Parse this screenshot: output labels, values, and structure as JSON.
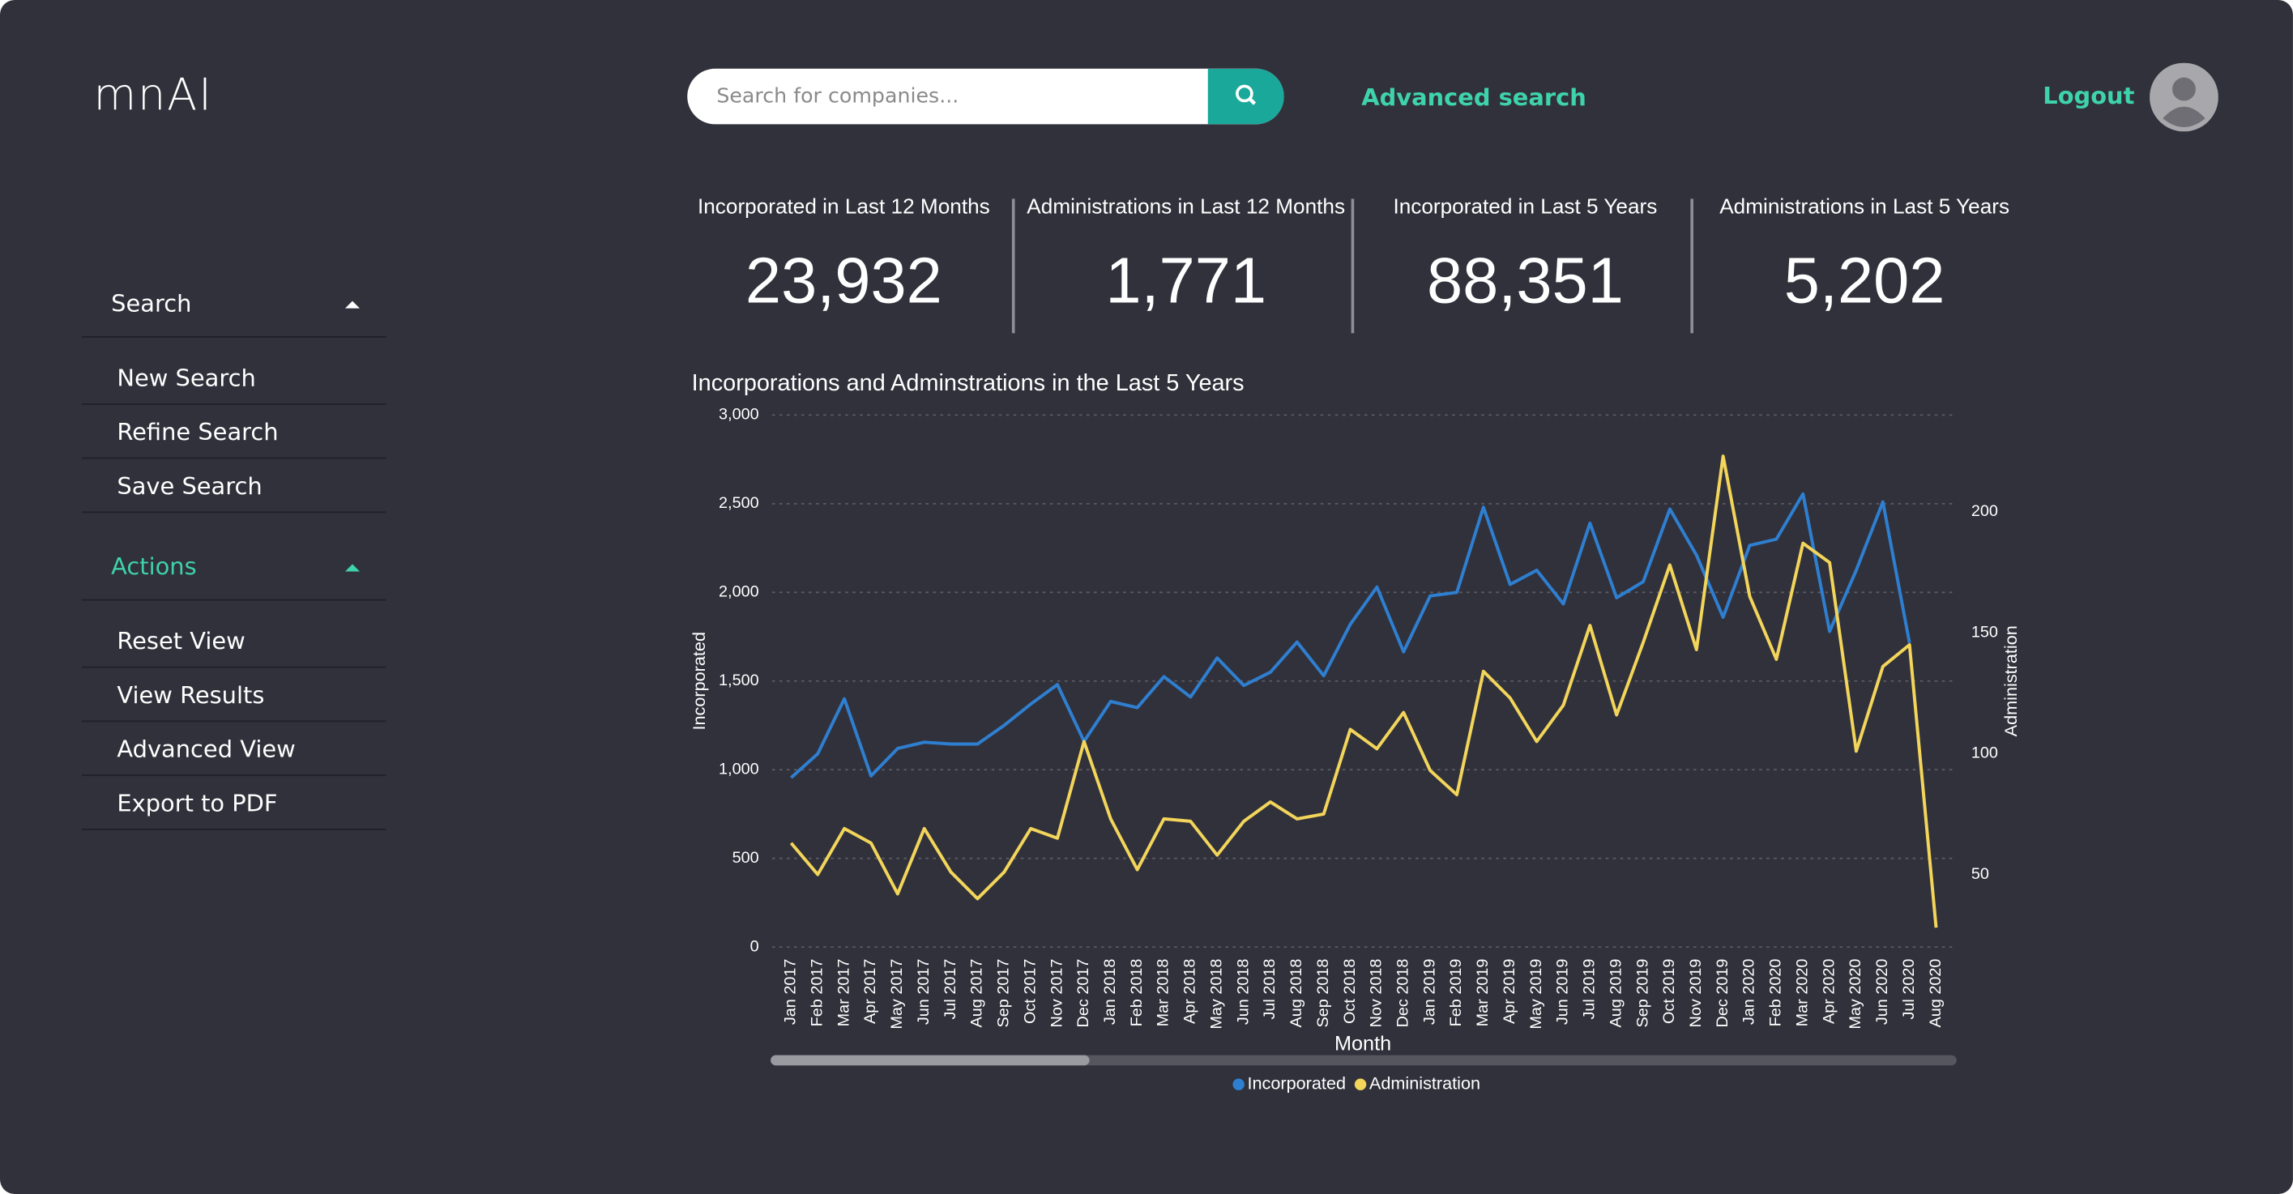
{
  "header": {
    "logo": "mnAI",
    "search_placeholder": "Search for companies...",
    "advanced_search": "Advanced search",
    "logout": "Logout"
  },
  "sidebar": {
    "sections": [
      {
        "title": "Search",
        "items": [
          "New Search",
          "Refine Search",
          "Save Search"
        ]
      },
      {
        "title": "Actions",
        "items": [
          "Reset View",
          "View Results",
          "Advanced View",
          "Export to PDF"
        ]
      }
    ]
  },
  "kpis": [
    {
      "label": "Incorporated in Last 12 Months",
      "value": "23,932"
    },
    {
      "label": "Administrations in Last 12 Months",
      "value": "1,771"
    },
    {
      "label": "Incorporated in Last 5 Years",
      "value": "88,351"
    },
    {
      "label": "Administrations in Last 5 Years",
      "value": "5,202"
    }
  ],
  "chart_data": {
    "type": "line",
    "title": "Incorporations and Adminstrations in the Last 5 Years",
    "x_label": "Month",
    "y_label": "Incorporated",
    "y2_label": "Administration",
    "categories": [
      "Jan 2017",
      "Feb 2017",
      "Mar 2017",
      "Apr 2017",
      "May 2017",
      "Jun 2017",
      "Jul 2017",
      "Aug 2017",
      "Sep 2017",
      "Oct 2017",
      "Nov 2017",
      "Dec 2017",
      "Jan 2018",
      "Feb 2018",
      "Mar 2018",
      "Apr 2018",
      "May 2018",
      "Jun 2018",
      "Jul 2018",
      "Aug 2018",
      "Sep 2018",
      "Oct 2018",
      "Nov 2018",
      "Dec 2018",
      "Jan 2019",
      "Feb 2019",
      "Mar 2019",
      "Apr 2019",
      "May 2019",
      "Jun 2019",
      "Jul 2019",
      "Aug 2019",
      "Sep 2019",
      "Oct 2019",
      "Nov 2019",
      "Dec 2019",
      "Jan 2020",
      "Feb 2020",
      "Mar 2020",
      "Apr 2020",
      "May 2020",
      "Jun 2020",
      "Jul 2020",
      "Aug 2020"
    ],
    "series": [
      {
        "name": "Incorporated",
        "color": "#2f7fd1",
        "values": [
          955,
          1090,
          1400,
          965,
          1120,
          1155,
          1145,
          1145,
          1250,
          1370,
          1480,
          1160,
          1385,
          1350,
          1525,
          1410,
          1630,
          1475,
          1550,
          1720,
          1530,
          1820,
          2030,
          1665,
          1980,
          2000,
          2480,
          2045,
          2125,
          1935,
          2390,
          1970,
          2060,
          2470,
          2210,
          1860,
          2265,
          2300,
          2555,
          1780,
          2125,
          2510,
          1715,
          null
        ]
      },
      {
        "name": "Administration",
        "color": "#f2d55a",
        "axis": "y2",
        "values": [
          63,
          50,
          69,
          63,
          42,
          69,
          51,
          40,
          51,
          69,
          65,
          105,
          73,
          52,
          73,
          72,
          58,
          72,
          80,
          73,
          75,
          110,
          102,
          117,
          93,
          83,
          134,
          123,
          105,
          120,
          153,
          116,
          146,
          178,
          143,
          223,
          165,
          139,
          187,
          179,
          101,
          136,
          145,
          28
        ]
      }
    ],
    "ylim": [
      0,
      3000
    ],
    "yticks": [
      0,
      500,
      {
        "value": 1000,
        "label": "1,000"
      },
      {
        "value": 1500,
        "label": "1,500"
      },
      {
        "value": 2000,
        "label": "2,000"
      },
      {
        "value": 2500,
        "label": "2,500"
      },
      {
        "value": 3000,
        "label": "3,000"
      }
    ],
    "y2lim": [
      20,
      240
    ],
    "y2ticks": [
      50,
      100,
      150,
      200
    ],
    "grid": true,
    "legend": "bottom"
  }
}
